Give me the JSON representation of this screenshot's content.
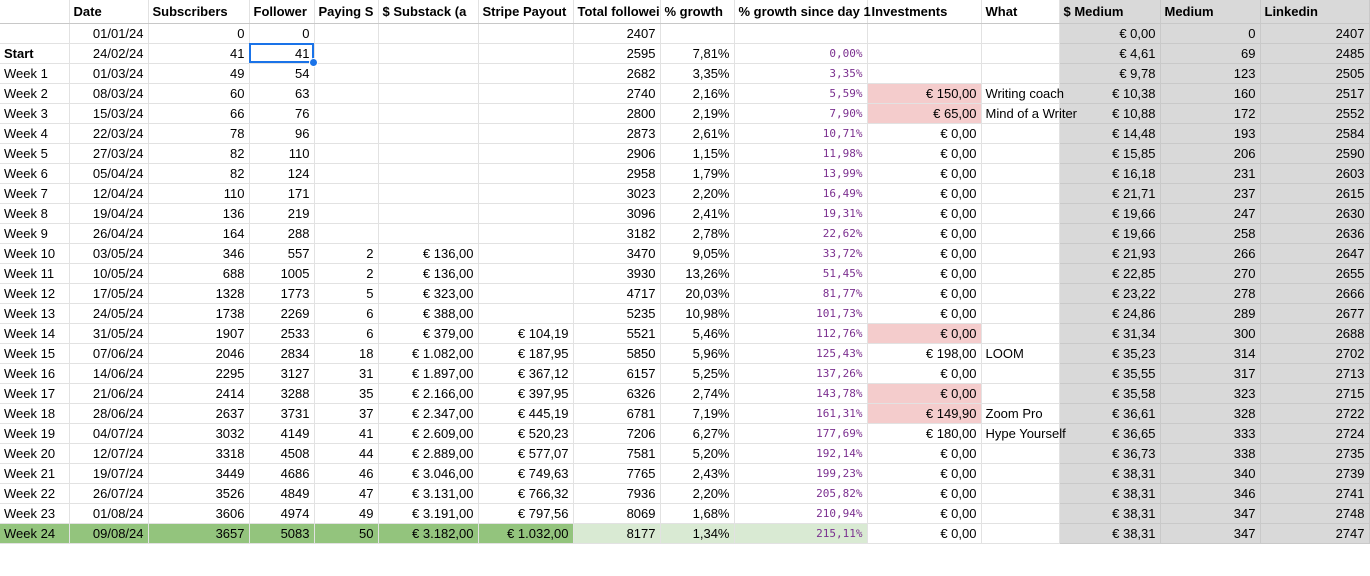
{
  "headers": [
    "",
    "Date",
    "Subscribers",
    "Follower",
    "Paying S",
    "$ Substack (a",
    "Stripe Payout",
    "Total followei",
    "% growth",
    "% growth since day 1",
    "Investments",
    "What",
    "$ Medium",
    "Medium",
    "Linkedin"
  ],
  "rows": [
    [
      "",
      "01/01/24",
      "0",
      "0",
      "",
      "",
      "",
      "2407",
      "",
      "",
      "",
      "",
      "€ 0,00",
      "0",
      "2407"
    ],
    [
      "Start",
      "24/02/24",
      "41",
      "41",
      "",
      "",
      "",
      "2595",
      "7,81%",
      "0,00%",
      "",
      "",
      "€ 4,61",
      "69",
      "2485"
    ],
    [
      "Week 1",
      "01/03/24",
      "49",
      "54",
      "",
      "",
      "",
      "2682",
      "3,35%",
      "3,35%",
      "",
      "",
      "€ 9,78",
      "123",
      "2505"
    ],
    [
      "Week 2",
      "08/03/24",
      "60",
      "63",
      "",
      "",
      "",
      "2740",
      "2,16%",
      "5,59%",
      "€ 150,00",
      "Writing coach",
      "€ 10,38",
      "160",
      "2517"
    ],
    [
      "Week 3",
      "15/03/24",
      "66",
      "76",
      "",
      "",
      "",
      "2800",
      "2,19%",
      "7,90%",
      "€ 65,00",
      "Mind of a Writer",
      "€ 10,88",
      "172",
      "2552"
    ],
    [
      "Week 4",
      "22/03/24",
      "78",
      "96",
      "",
      "",
      "",
      "2873",
      "2,61%",
      "10,71%",
      "€ 0,00",
      "",
      "€ 14,48",
      "193",
      "2584"
    ],
    [
      "Week 5",
      "27/03/24",
      "82",
      "110",
      "",
      "",
      "",
      "2906",
      "1,15%",
      "11,98%",
      "€ 0,00",
      "",
      "€ 15,85",
      "206",
      "2590"
    ],
    [
      "Week 6",
      "05/04/24",
      "82",
      "124",
      "",
      "",
      "",
      "2958",
      "1,79%",
      "13,99%",
      "€ 0,00",
      "",
      "€ 16,18",
      "231",
      "2603"
    ],
    [
      "Week 7",
      "12/04/24",
      "110",
      "171",
      "",
      "",
      "",
      "3023",
      "2,20%",
      "16,49%",
      "€ 0,00",
      "",
      "€ 21,71",
      "237",
      "2615"
    ],
    [
      "Week 8",
      "19/04/24",
      "136",
      "219",
      "",
      "",
      "",
      "3096",
      "2,41%",
      "19,31%",
      "€ 0,00",
      "",
      "€ 19,66",
      "247",
      "2630"
    ],
    [
      "Week 9",
      "26/04/24",
      "164",
      "288",
      "",
      "",
      "",
      "3182",
      "2,78%",
      "22,62%",
      "€ 0,00",
      "",
      "€ 19,66",
      "258",
      "2636"
    ],
    [
      "Week 10",
      "03/05/24",
      "346",
      "557",
      "2",
      "€ 136,00",
      "",
      "3470",
      "9,05%",
      "33,72%",
      "€ 0,00",
      "",
      "€ 21,93",
      "266",
      "2647"
    ],
    [
      "Week 11",
      "10/05/24",
      "688",
      "1005",
      "2",
      "€ 136,00",
      "",
      "3930",
      "13,26%",
      "51,45%",
      "€ 0,00",
      "",
      "€ 22,85",
      "270",
      "2655"
    ],
    [
      "Week 12",
      "17/05/24",
      "1328",
      "1773",
      "5",
      "€ 323,00",
      "",
      "4717",
      "20,03%",
      "81,77%",
      "€ 0,00",
      "",
      "€ 23,22",
      "278",
      "2666"
    ],
    [
      "Week 13",
      "24/05/24",
      "1738",
      "2269",
      "6",
      "€ 388,00",
      "",
      "5235",
      "10,98%",
      "101,73%",
      "€ 0,00",
      "",
      "€ 24,86",
      "289",
      "2677"
    ],
    [
      "Week 14",
      "31/05/24",
      "1907",
      "2533",
      "6",
      "€ 379,00",
      "€ 104,19",
      "5521",
      "5,46%",
      "112,76%",
      "€ 0,00",
      "",
      "€ 31,34",
      "300",
      "2688"
    ],
    [
      "Week 15",
      "07/06/24",
      "2046",
      "2834",
      "18",
      "€ 1.082,00",
      "€ 187,95",
      "5850",
      "5,96%",
      "125,43%",
      "€ 198,00",
      "LOOM",
      "€ 35,23",
      "314",
      "2702"
    ],
    [
      "Week 16",
      "14/06/24",
      "2295",
      "3127",
      "31",
      "€ 1.897,00",
      "€ 367,12",
      "6157",
      "5,25%",
      "137,26%",
      "€ 0,00",
      "",
      "€ 35,55",
      "317",
      "2713"
    ],
    [
      "Week 17",
      "21/06/24",
      "2414",
      "3288",
      "35",
      "€ 2.166,00",
      "€ 397,95",
      "6326",
      "2,74%",
      "143,78%",
      "€ 0,00",
      "",
      "€ 35,58",
      "323",
      "2715"
    ],
    [
      "Week 18",
      "28/06/24",
      "2637",
      "3731",
      "37",
      "€ 2.347,00",
      "€ 445,19",
      "6781",
      "7,19%",
      "161,31%",
      "€ 149,90",
      "Zoom Pro",
      "€ 36,61",
      "328",
      "2722"
    ],
    [
      "Week 19",
      "04/07/24",
      "3032",
      "4149",
      "41",
      "€ 2.609,00",
      "€ 520,23",
      "7206",
      "6,27%",
      "177,69%",
      "€ 180,00",
      "Hype Yourself",
      "€ 36,65",
      "333",
      "2724"
    ],
    [
      "Week 20",
      "12/07/24",
      "3318",
      "4508",
      "44",
      "€ 2.889,00",
      "€ 577,07",
      "7581",
      "5,20%",
      "192,14%",
      "€ 0,00",
      "",
      "€ 36,73",
      "338",
      "2735"
    ],
    [
      "Week 21",
      "19/07/24",
      "3449",
      "4686",
      "46",
      "€ 3.046,00",
      "€ 749,63",
      "7765",
      "2,43%",
      "199,23%",
      "€ 0,00",
      "",
      "€ 38,31",
      "340",
      "2739"
    ],
    [
      "Week 22",
      "26/07/24",
      "3526",
      "4849",
      "47",
      "€ 3.131,00",
      "€ 766,32",
      "7936",
      "2,20%",
      "205,82%",
      "€ 0,00",
      "",
      "€ 38,31",
      "346",
      "2741"
    ],
    [
      "Week 23",
      "01/08/24",
      "3606",
      "4974",
      "49",
      "€ 3.191,00",
      "€ 797,56",
      "8069",
      "1,68%",
      "210,94%",
      "€ 0,00",
      "",
      "€ 38,31",
      "347",
      "2748"
    ],
    [
      "Week 24",
      "09/08/24",
      "3657",
      "5083",
      "50",
      "€ 3.182,00",
      "€ 1.032,00",
      "8177",
      "1,34%",
      "215,11%",
      "€ 0,00",
      "",
      "€ 38,31",
      "347",
      "2747"
    ]
  ],
  "selected_cell": {
    "row": 1,
    "col": 3
  },
  "colors": {
    "highlight_row": "#93c47d",
    "highlight_light": "#d9ead3",
    "investment_cell": "#f4cccc",
    "medium_columns": "#d9d9d9",
    "growth_text": "#7b2f8f",
    "selection": "#1a73e8"
  }
}
